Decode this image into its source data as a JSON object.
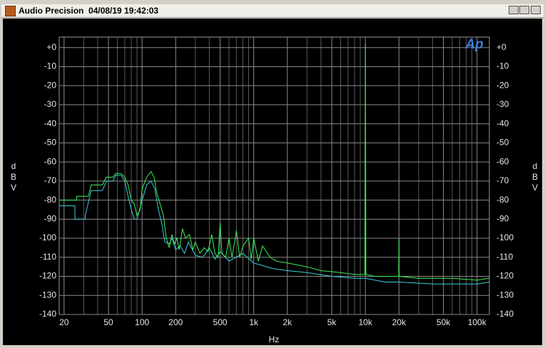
{
  "chart_data": {
    "type": "line",
    "title": "Audio Precision  04/08/19 19:42:03",
    "logo": "Ap",
    "xlabel": "Hz",
    "ylabel": "dBV",
    "xscale": "log",
    "grid": true,
    "xlim": [
      18.1,
      129000
    ],
    "ylim": [
      -140,
      5.5
    ],
    "xticks": [
      20,
      50,
      100,
      200,
      500,
      {
        "value": 1000,
        "label": "1k"
      },
      {
        "value": 2000,
        "label": "2k"
      },
      {
        "value": 5000,
        "label": "5k"
      },
      {
        "value": 10000,
        "label": "10k"
      },
      {
        "value": 20000,
        "label": "20k"
      },
      {
        "value": 50000,
        "label": "50k"
      },
      {
        "value": 100000,
        "label": "100k"
      }
    ],
    "xminor": [
      30,
      40,
      60,
      70,
      80,
      90,
      300,
      400,
      600,
      700,
      800,
      900,
      3000,
      4000,
      6000,
      7000,
      8000,
      9000,
      30000,
      40000,
      60000,
      70000,
      80000,
      90000
    ],
    "yticks": [
      {
        "value": 0,
        "label": "+0"
      },
      -10,
      -20,
      -30,
      -40,
      -50,
      -60,
      -70,
      -80,
      -90,
      -100,
      -110,
      -120,
      -130,
      -140
    ],
    "series": [
      {
        "color": "#3ccfe0",
        "x": [
          18.1,
          25,
          25,
          31,
          31,
          35,
          44,
          48,
          55,
          58,
          65,
          70,
          75,
          80,
          85,
          90,
          100,
          110,
          120,
          130,
          140,
          150,
          160,
          175,
          185,
          200,
          220,
          240,
          260,
          300,
          350,
          400,
          450,
          500,
          600,
          800,
          1000,
          1500,
          2000,
          3000,
          5000,
          8000,
          10000,
          15000,
          20000,
          40000,
          60000,
          100000,
          129000
        ],
        "values": [
          -83,
          -83,
          -90,
          -90,
          -88,
          -75,
          -75,
          -70,
          -70,
          -67,
          -67,
          -70,
          -78,
          -85,
          -90,
          -90,
          -80,
          -72,
          -70,
          -74,
          -85,
          -92,
          -102,
          -103,
          -100,
          -106,
          -104,
          -108,
          -102,
          -109,
          -110,
          -105,
          -111,
          -107,
          -112,
          -108,
          -113,
          -116,
          -117,
          -118,
          -120,
          -121,
          -121,
          -123,
          -123,
          -124,
          -124,
          -124,
          -123
        ]
      },
      {
        "color": "#3cf05a",
        "x": [
          18.1,
          26,
          26,
          33,
          35,
          44,
          48,
          55,
          58,
          65,
          70,
          75,
          80,
          85,
          90,
          96,
          100,
          110,
          120,
          128,
          135,
          145,
          155,
          165,
          175,
          185,
          195,
          205,
          215,
          230,
          245,
          265,
          285,
          300,
          330,
          360,
          390,
          420,
          450,
          480,
          500,
          520,
          560,
          600,
          640,
          700,
          750,
          800,
          900,
          950,
          1000,
          1100,
          1200,
          1400,
          1600,
          2000,
          3000,
          4000,
          6000,
          8000,
          9900,
          10000,
          10100,
          12000,
          19900,
          20000,
          20100,
          30000,
          40000,
          60000,
          100000,
          129000
        ],
        "values": [
          -80,
          -80,
          -78,
          -78,
          -72,
          -72,
          -68,
          -68,
          -66,
          -66,
          -68,
          -72,
          -80,
          -82,
          -88,
          -85,
          -74,
          -68,
          -65,
          -68,
          -76,
          -82,
          -88,
          -100,
          -105,
          -98,
          -103,
          -100,
          -106,
          -95,
          -100,
          -98,
          -106,
          -102,
          -108,
          -105,
          -107,
          -98,
          -108,
          -110,
          -92,
          -108,
          -110,
          -100,
          -110,
          -96,
          -110,
          -104,
          -100,
          -111,
          -100,
          -112,
          -104,
          -110,
          -112,
          -113,
          -115,
          -117,
          -118,
          -119,
          -119,
          2,
          -119,
          -120,
          -120,
          -100,
          -120,
          -121,
          -121,
          -121,
          -122,
          -121
        ]
      }
    ]
  }
}
